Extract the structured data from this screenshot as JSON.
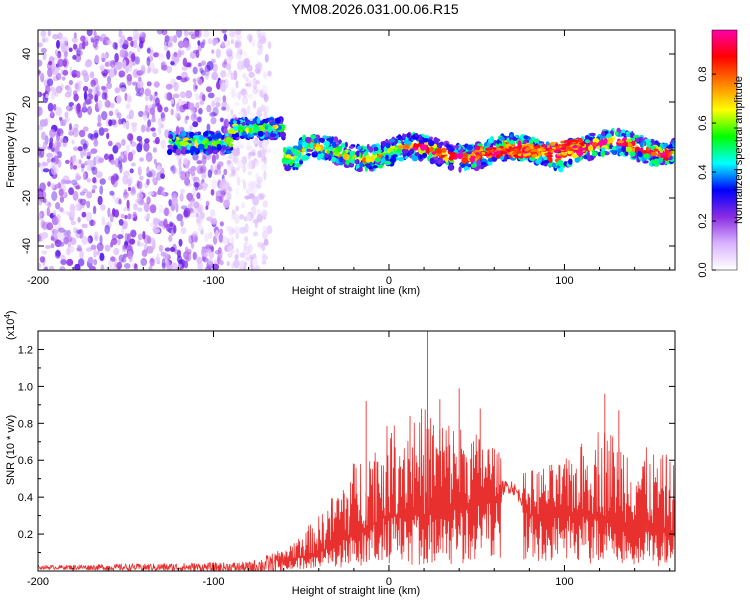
{
  "figure": {
    "title": "YM08.2026.031.00.06.R15"
  },
  "chart_data": [
    {
      "type": "heatmap",
      "title": "YM08.2026.031.00.06.R15",
      "xlabel": "Height of straight line (km)",
      "ylabel": "Frequency (Hz)",
      "xlim": [
        -200,
        163
      ],
      "ylim": [
        -50,
        50
      ],
      "xticks": [
        -200,
        -100,
        0,
        100
      ],
      "yticks": [
        -40,
        -20,
        0,
        20,
        40
      ],
      "colorbar": {
        "label": "Normalized spectral amplitude",
        "range": [
          0,
          0.98
        ],
        "ticks": [
          0.0,
          0.2,
          0.4,
          0.6,
          0.8
        ],
        "tick_labels": [
          "0.0",
          "0.2",
          "0.4",
          "0.6",
          "0.8"
        ],
        "colormap": [
          "#ffffff",
          "#d9b3ff",
          "#8a2be2",
          "#0000ff",
          "#00ffff",
          "#00ff00",
          "#ffff00",
          "#ff8000",
          "#ff0000",
          "#ff00aa"
        ]
      },
      "regions": [
        {
          "name": "noise",
          "x_range": [
            -200,
            -68
          ],
          "freq_range": [
            -50,
            50
          ],
          "amplitude": 0.15
        },
        {
          "name": "onset",
          "x_range": [
            -125,
            -60
          ],
          "freq_center": 3,
          "freq_halfwidth": 4,
          "amplitude": 0.3
        },
        {
          "name": "band",
          "x_range": [
            -60,
            163
          ],
          "freq_center": -1,
          "freq_halfwidth": 5,
          "amplitude": 0.35
        },
        {
          "name": "peak",
          "x_range": [
            50,
            110
          ],
          "freq_center": -1,
          "freq_halfwidth": 2,
          "amplitude": 0.95
        }
      ]
    },
    {
      "type": "line",
      "xlabel": "Height of straight line (km)",
      "ylabel": "SNR (10 * v/v)",
      "multiplier_label": "(x10",
      "multiplier_exp": "4",
      "multiplier_close": ")",
      "xlim": [
        -200,
        163
      ],
      "ylim": [
        0,
        1.3
      ],
      "xticks": [
        -200,
        -100,
        0,
        100
      ],
      "yticks": [
        0.2,
        0.4,
        0.6,
        0.8,
        1.0,
        1.2
      ],
      "color": "#e8312f",
      "envelope": [
        {
          "x": -200,
          "base": 0.02,
          "peak": 0.03
        },
        {
          "x": -80,
          "base": 0.02,
          "peak": 0.05
        },
        {
          "x": -60,
          "base": 0.05,
          "peak": 0.12
        },
        {
          "x": -40,
          "base": 0.1,
          "peak": 0.3
        },
        {
          "x": -20,
          "base": 0.2,
          "peak": 0.6
        },
        {
          "x": 0,
          "base": 0.3,
          "peak": 0.8
        },
        {
          "x": 20,
          "base": 0.3,
          "peak": 0.9
        },
        {
          "x": 40,
          "base": 0.35,
          "peak": 0.8
        },
        {
          "x": 60,
          "base": 0.4,
          "peak": 0.7
        },
        {
          "x": 70,
          "base": 0.42,
          "peak": 0.5
        },
        {
          "x": 80,
          "base": 0.3,
          "peak": 0.55
        },
        {
          "x": 100,
          "base": 0.3,
          "peak": 0.6
        },
        {
          "x": 120,
          "base": 0.3,
          "peak": 0.8
        },
        {
          "x": 140,
          "base": 0.25,
          "peak": 0.7
        },
        {
          "x": 163,
          "base": 0.2,
          "peak": 0.6
        }
      ],
      "spikes": [
        {
          "x": -13,
          "y": 0.92
        },
        {
          "x": 12,
          "y": 0.84
        },
        {
          "x": 22,
          "y": 1.3
        },
        {
          "x": 29,
          "y": 0.93
        },
        {
          "x": 40,
          "y": 0.99
        },
        {
          "x": 52,
          "y": 0.88
        },
        {
          "x": 123,
          "y": 0.96
        },
        {
          "x": 131,
          "y": 0.87
        },
        {
          "x": 158,
          "y": 0.63
        }
      ]
    }
  ]
}
